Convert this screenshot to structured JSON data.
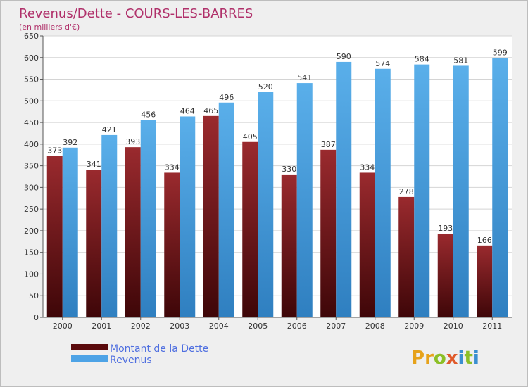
{
  "chart_data": {
    "type": "bar",
    "title": "Revenus/Dette - COURS-LES-BARRES",
    "subtitle": "(en milliers d'€)",
    "categories": [
      "2000",
      "2001",
      "2002",
      "2003",
      "2004",
      "2005",
      "2006",
      "2007",
      "2008",
      "2009",
      "2010",
      "2011"
    ],
    "series": [
      {
        "name": "Montant de la Dette",
        "color": "#7b1a1e",
        "values": [
          373,
          341,
          393,
          334,
          465,
          405,
          330,
          387,
          334,
          278,
          193,
          166
        ]
      },
      {
        "name": "Revenus",
        "color": "#4da3e6",
        "values": [
          392,
          421,
          456,
          464,
          496,
          520,
          541,
          590,
          574,
          584,
          581,
          599
        ]
      }
    ],
    "ylim": [
      0,
      650
    ],
    "yticks": [
      0,
      50,
      100,
      150,
      200,
      250,
      300,
      350,
      400,
      450,
      500,
      550,
      600,
      650
    ],
    "grid": true,
    "legend_position": "bottom-left"
  },
  "logo": {
    "letters": [
      "P",
      "r",
      "o",
      "x",
      "i",
      "t",
      "i"
    ],
    "colors": [
      "#e6a21a",
      "#e6a21a",
      "#8cbf26",
      "#e05a2a",
      "#3a8fd0",
      "#8cbf26",
      "#3a8fd0"
    ]
  }
}
